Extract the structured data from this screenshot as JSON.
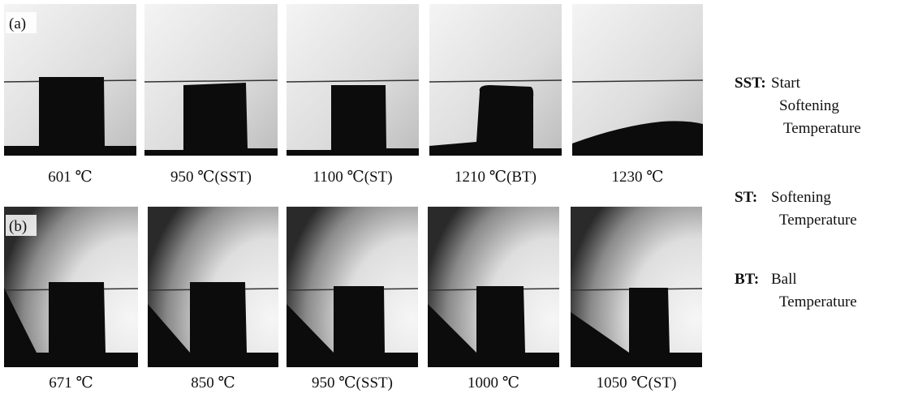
{
  "rows": [
    {
      "label": "(a)",
      "panels": [
        {
          "caption": "601 ℃"
        },
        {
          "caption": "950 ℃(SST)"
        },
        {
          "caption": "1100 ℃(ST)"
        },
        {
          "caption": "1210 ℃(BT)"
        },
        {
          "caption": "1230 ℃"
        }
      ]
    },
    {
      "label": "(b)",
      "panels": [
        {
          "caption": "671 ℃"
        },
        {
          "caption": "850 ℃"
        },
        {
          "caption": "950 ℃(SST)"
        },
        {
          "caption": "1000 ℃"
        },
        {
          "caption": "1050 ℃(ST)"
        }
      ]
    }
  ],
  "legend": [
    {
      "abbr": "SST:",
      "lines": [
        "Start",
        "Softening",
        "Temperature"
      ]
    },
    {
      "abbr": "ST:",
      "lines": [
        "Softening",
        "Temperature"
      ]
    },
    {
      "abbr": "BT:",
      "lines": [
        "Ball",
        "Temperature"
      ]
    }
  ]
}
